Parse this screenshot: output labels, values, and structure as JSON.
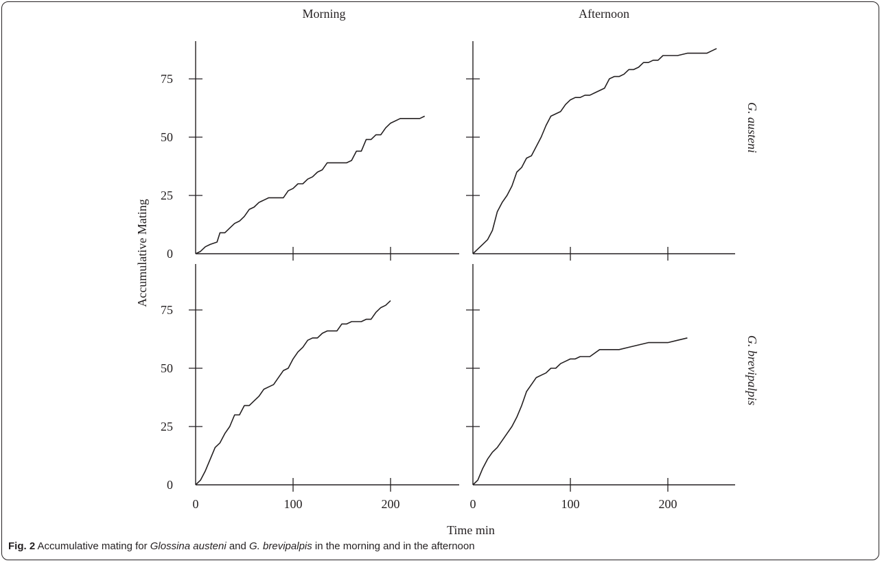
{
  "caption": {
    "label": "Fig. 2",
    "parts": [
      {
        "text": "Accumulative mating for ",
        "italic": false
      },
      {
        "text": "Glossina austeni",
        "italic": true
      },
      {
        "text": " and ",
        "italic": false
      },
      {
        "text": "G. brevipalpis",
        "italic": true
      },
      {
        "text": " in the morning and in the afternoon",
        "italic": false
      }
    ]
  },
  "chart_data": {
    "type": "line",
    "column_titles": [
      "Morning",
      "Afternoon"
    ],
    "row_titles": [
      "G. austeni",
      "G. brevipalpis"
    ],
    "ylabel": "Accumulative Mating",
    "xlabel": "Time min",
    "xlim": [
      0,
      300
    ],
    "ylim": [
      0,
      90
    ],
    "xticks": [
      0,
      100,
      200
    ],
    "yticks": [
      0,
      25,
      50,
      75
    ],
    "grid": false,
    "legend": "none",
    "line_color": "#231f20",
    "panels": [
      {
        "row": 0,
        "col": 0,
        "x": [
          0,
          5,
          10,
          15,
          22,
          25,
          30,
          35,
          40,
          45,
          50,
          55,
          60,
          65,
          70,
          75,
          80,
          85,
          90,
          95,
          100,
          105,
          110,
          115,
          120,
          125,
          130,
          135,
          140,
          145,
          150,
          155,
          160,
          165,
          170,
          175,
          180,
          185,
          190,
          195,
          200,
          210,
          220,
          230,
          235
        ],
        "y": [
          0,
          1,
          3,
          4,
          5,
          9,
          9,
          11,
          13,
          14,
          16,
          19,
          20,
          22,
          23,
          24,
          24,
          24,
          24,
          27,
          28,
          30,
          30,
          32,
          33,
          35,
          36,
          39,
          39,
          39,
          39,
          39,
          40,
          44,
          44,
          49,
          49,
          51,
          51,
          54,
          56,
          58,
          58,
          58,
          59
        ]
      },
      {
        "row": 0,
        "col": 1,
        "x": [
          0,
          5,
          10,
          15,
          20,
          25,
          30,
          35,
          40,
          45,
          50,
          55,
          60,
          65,
          70,
          75,
          80,
          85,
          90,
          95,
          100,
          105,
          110,
          115,
          120,
          125,
          130,
          135,
          140,
          145,
          150,
          155,
          160,
          165,
          170,
          175,
          180,
          185,
          190,
          195,
          200,
          210,
          220,
          230,
          240,
          245,
          250
        ],
        "y": [
          0,
          2,
          4,
          6,
          10,
          18,
          22,
          25,
          29,
          35,
          37,
          41,
          42,
          46,
          50,
          55,
          59,
          60,
          61,
          64,
          66,
          67,
          67,
          68,
          68,
          69,
          70,
          71,
          75,
          76,
          76,
          77,
          79,
          79,
          80,
          82,
          82,
          83,
          83,
          85,
          85,
          85,
          86,
          86,
          86,
          87,
          88
        ]
      },
      {
        "row": 1,
        "col": 0,
        "x": [
          0,
          5,
          10,
          15,
          20,
          25,
          30,
          35,
          40,
          45,
          50,
          55,
          60,
          65,
          70,
          75,
          80,
          85,
          90,
          95,
          100,
          105,
          110,
          115,
          120,
          125,
          130,
          135,
          140,
          145,
          150,
          155,
          160,
          165,
          170,
          175,
          180,
          185,
          190,
          195,
          200
        ],
        "y": [
          0,
          2,
          6,
          11,
          16,
          18,
          22,
          25,
          30,
          30,
          34,
          34,
          36,
          38,
          41,
          42,
          43,
          46,
          49,
          50,
          54,
          57,
          59,
          62,
          63,
          63,
          65,
          66,
          66,
          66,
          69,
          69,
          70,
          70,
          70,
          71,
          71,
          74,
          76,
          77,
          79
        ]
      },
      {
        "row": 1,
        "col": 1,
        "x": [
          0,
          5,
          10,
          15,
          20,
          25,
          30,
          35,
          40,
          45,
          50,
          55,
          60,
          65,
          70,
          75,
          80,
          85,
          90,
          95,
          100,
          105,
          110,
          115,
          120,
          130,
          140,
          150,
          160,
          170,
          180,
          190,
          200,
          210,
          220
        ],
        "y": [
          0,
          2,
          7,
          11,
          14,
          16,
          19,
          22,
          25,
          29,
          34,
          40,
          43,
          46,
          47,
          48,
          50,
          50,
          52,
          53,
          54,
          54,
          55,
          55,
          55,
          58,
          58,
          58,
          59,
          60,
          61,
          61,
          61,
          62,
          63
        ]
      }
    ]
  }
}
